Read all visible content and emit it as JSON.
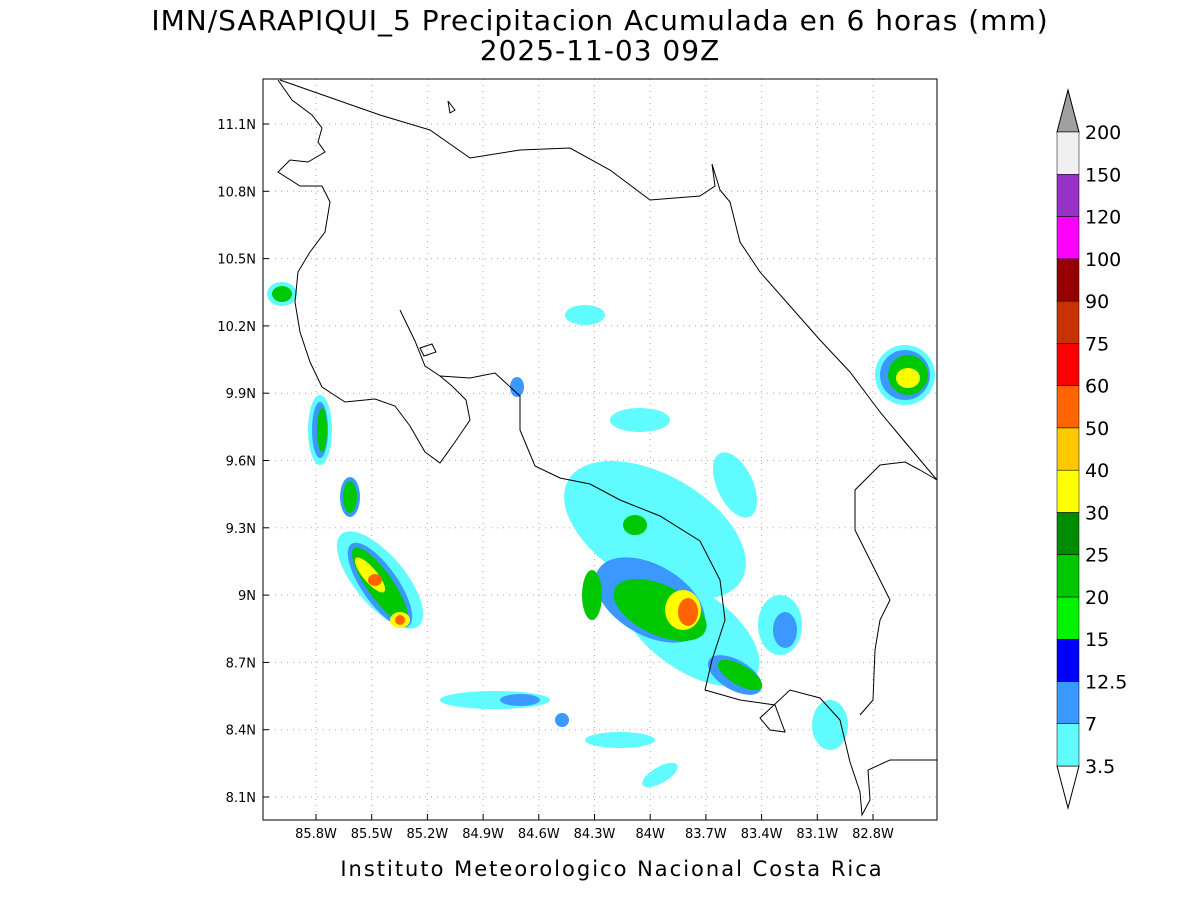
{
  "header": {
    "title": "IMN/SARAPIQUI_5 Precipitacion Acumulada en 6 horas (mm)",
    "subtitle": "2025-11-03 09Z"
  },
  "map": {
    "xticks": [
      "85.8W",
      "85.5W",
      "85.2W",
      "84.9W",
      "84.6W",
      "84.3W",
      "84W",
      "83.7W",
      "83.4W",
      "83.1W",
      "82.8W"
    ],
    "yticks": [
      "11.1N",
      "10.8N",
      "10.5N",
      "10.2N",
      "9.9N",
      "9.6N",
      "9.3N",
      "9N",
      "8.7N",
      "8.4N",
      "8.1N"
    ],
    "grid": true
  },
  "colorbar": {
    "levels": [
      3.5,
      7,
      12.5,
      15,
      20,
      25,
      30,
      40,
      50,
      60,
      75,
      90,
      100,
      120,
      150,
      200
    ],
    "colors": [
      "#5ffbff",
      "#3a98ff",
      "#0000ff",
      "#00f400",
      "#00c800",
      "#008c00",
      "#ffff00",
      "#ffc800",
      "#ff6400",
      "#ff0000",
      "#c83200",
      "#960000",
      "#ff00ff",
      "#9632c8",
      "#f0f0f0"
    ],
    "below_color": "#ffffff",
    "above_color": "#a0a0a0"
  },
  "footer": "Instituto Meteorologico Nacional Costa Rica"
}
